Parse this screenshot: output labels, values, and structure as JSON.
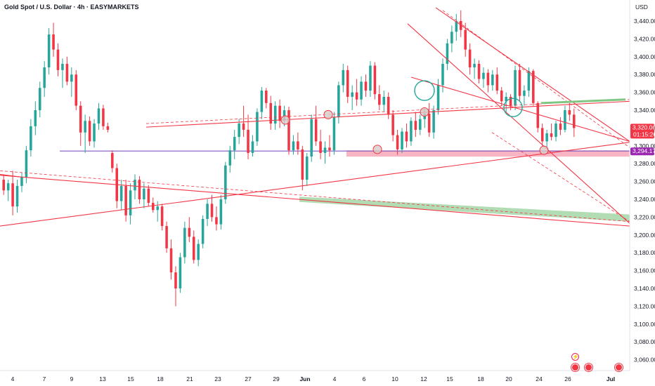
{
  "header": {
    "title": "Gold Spot / U.S. Dollar · 4h · EASYMARKETS"
  },
  "colors": {
    "up": "#26a69a",
    "down": "#f23645",
    "trendline": "#f23645",
    "support_line": "#7e57c2",
    "support_zone": "#f7a8b8",
    "green_zone": "#a5d6a7",
    "price_badge": "#f23645",
    "support_badge": "#9c27b0"
  },
  "icons": {
    "lightning": "lightning-icon",
    "earnings": [
      "flag-icon",
      "flag-icon",
      "flag-icon"
    ]
  },
  "chart_data": {
    "type": "candlestick",
    "title": "Gold Spot / U.S. Dollar · 4h · EASYMARKETS",
    "price_axis": {
      "unit": "USD",
      "ticks": [
        "3,440.00",
        "3,420.00",
        "3,400.00",
        "3,380.00",
        "3,360.00",
        "3,340.00",
        "3,320.00",
        "3,300.00",
        "3,280.00",
        "3,260.00",
        "3,240.00",
        "3,220.00",
        "3,200.00",
        "3,180.00",
        "3,160.00",
        "3,140.00",
        "3,120.00",
        "3,100.00",
        "3,080.00",
        "3,060.00"
      ],
      "ylim": [
        3050,
        3455
      ]
    },
    "time_axis": [
      "4",
      "7",
      "9",
      "13",
      "15",
      "18",
      "21",
      "23",
      "27",
      "29",
      "Jun",
      "4",
      "6",
      "10",
      "12",
      "15",
      "18",
      "20",
      "24",
      "26",
      "Jul"
    ],
    "current_price": {
      "value": 3320.06,
      "label": "3,320.06",
      "countdown": "01:15:26"
    },
    "support_level": {
      "value": 3294.17,
      "label": "3,294.17"
    },
    "candles": [
      {
        "o": 3262,
        "h": 3268,
        "l": 3245,
        "c": 3250
      },
      {
        "o": 3250,
        "h": 3262,
        "l": 3238,
        "c": 3258
      },
      {
        "o": 3258,
        "h": 3272,
        "l": 3222,
        "c": 3232
      },
      {
        "o": 3232,
        "h": 3262,
        "l": 3225,
        "c": 3255
      },
      {
        "o": 3255,
        "h": 3270,
        "l": 3248,
        "c": 3265
      },
      {
        "o": 3265,
        "h": 3300,
        "l": 3258,
        "c": 3295
      },
      {
        "o": 3295,
        "h": 3330,
        "l": 3288,
        "c": 3322
      },
      {
        "o": 3322,
        "h": 3350,
        "l": 3312,
        "c": 3340
      },
      {
        "o": 3340,
        "h": 3372,
        "l": 3332,
        "c": 3365
      },
      {
        "o": 3365,
        "h": 3395,
        "l": 3355,
        "c": 3388
      },
      {
        "o": 3388,
        "h": 3432,
        "l": 3380,
        "c": 3425
      },
      {
        "o": 3425,
        "h": 3438,
        "l": 3400,
        "c": 3408
      },
      {
        "o": 3408,
        "h": 3415,
        "l": 3378,
        "c": 3385
      },
      {
        "o": 3385,
        "h": 3398,
        "l": 3365,
        "c": 3392
      },
      {
        "o": 3392,
        "h": 3400,
        "l": 3368,
        "c": 3372
      },
      {
        "o": 3372,
        "h": 3388,
        "l": 3355,
        "c": 3380
      },
      {
        "o": 3380,
        "h": 3385,
        "l": 3340,
        "c": 3345
      },
      {
        "o": 3345,
        "h": 3350,
        "l": 3300,
        "c": 3315
      },
      {
        "o": 3315,
        "h": 3335,
        "l": 3292,
        "c": 3328
      },
      {
        "o": 3328,
        "h": 3333,
        "l": 3300,
        "c": 3305
      },
      {
        "o": 3305,
        "h": 3330,
        "l": 3298,
        "c": 3325
      },
      {
        "o": 3325,
        "h": 3348,
        "l": 3318,
        "c": 3342
      },
      {
        "o": 3342,
        "h": 3346,
        "l": 3318,
        "c": 3322
      },
      {
        "o": 3322,
        "h": 3326,
        "l": 3315,
        "c": 3318
      },
      {
        "o": 3292,
        "h": 3295,
        "l": 3270,
        "c": 3275
      },
      {
        "o": 3275,
        "h": 3280,
        "l": 3230,
        "c": 3238
      },
      {
        "o": 3238,
        "h": 3262,
        "l": 3228,
        "c": 3255
      },
      {
        "o": 3255,
        "h": 3262,
        "l": 3215,
        "c": 3222
      },
      {
        "o": 3222,
        "h": 3258,
        "l": 3212,
        "c": 3250
      },
      {
        "o": 3250,
        "h": 3268,
        "l": 3240,
        "c": 3262
      },
      {
        "o": 3262,
        "h": 3266,
        "l": 3235,
        "c": 3240
      },
      {
        "o": 3240,
        "h": 3258,
        "l": 3230,
        "c": 3252
      },
      {
        "o": 3252,
        "h": 3256,
        "l": 3232,
        "c": 3236
      },
      {
        "o": 3236,
        "h": 3242,
        "l": 3225,
        "c": 3228
      },
      {
        "o": 3228,
        "h": 3238,
        "l": 3215,
        "c": 3232
      },
      {
        "o": 3232,
        "h": 3235,
        "l": 3205,
        "c": 3210
      },
      {
        "o": 3210,
        "h": 3215,
        "l": 3180,
        "c": 3185
      },
      {
        "o": 3185,
        "h": 3195,
        "l": 3150,
        "c": 3158
      },
      {
        "o": 3158,
        "h": 3165,
        "l": 3120,
        "c": 3140
      },
      {
        "o": 3140,
        "h": 3180,
        "l": 3135,
        "c": 3175
      },
      {
        "o": 3175,
        "h": 3215,
        "l": 3168,
        "c": 3208
      },
      {
        "o": 3208,
        "h": 3220,
        "l": 3192,
        "c": 3198
      },
      {
        "o": 3198,
        "h": 3205,
        "l": 3168,
        "c": 3172
      },
      {
        "o": 3172,
        "h": 3195,
        "l": 3165,
        "c": 3190
      },
      {
        "o": 3190,
        "h": 3222,
        "l": 3185,
        "c": 3218
      },
      {
        "o": 3218,
        "h": 3240,
        "l": 3210,
        "c": 3235
      },
      {
        "o": 3235,
        "h": 3245,
        "l": 3215,
        "c": 3220
      },
      {
        "o": 3220,
        "h": 3232,
        "l": 3205,
        "c": 3212
      },
      {
        "o": 3212,
        "h": 3245,
        "l": 3206,
        "c": 3240
      },
      {
        "o": 3240,
        "h": 3282,
        "l": 3235,
        "c": 3278
      },
      {
        "o": 3278,
        "h": 3300,
        "l": 3270,
        "c": 3295
      },
      {
        "o": 3295,
        "h": 3318,
        "l": 3285,
        "c": 3310
      },
      {
        "o": 3310,
        "h": 3330,
        "l": 3302,
        "c": 3325
      },
      {
        "o": 3325,
        "h": 3345,
        "l": 3310,
        "c": 3318
      },
      {
        "o": 3318,
        "h": 3335,
        "l": 3285,
        "c": 3292
      },
      {
        "o": 3292,
        "h": 3312,
        "l": 3288,
        "c": 3305
      },
      {
        "o": 3305,
        "h": 3342,
        "l": 3300,
        "c": 3338
      },
      {
        "o": 3338,
        "h": 3366,
        "l": 3330,
        "c": 3362
      },
      {
        "o": 3362,
        "h": 3365,
        "l": 3342,
        "c": 3348
      },
      {
        "o": 3348,
        "h": 3356,
        "l": 3318,
        "c": 3325
      },
      {
        "o": 3325,
        "h": 3350,
        "l": 3318,
        "c": 3345
      },
      {
        "o": 3345,
        "h": 3352,
        "l": 3320,
        "c": 3328
      },
      {
        "o": 3328,
        "h": 3345,
        "l": 3322,
        "c": 3340
      },
      {
        "o": 3340,
        "h": 3344,
        "l": 3290,
        "c": 3295
      },
      {
        "o": 3295,
        "h": 3312,
        "l": 3290,
        "c": 3305
      },
      {
        "o": 3305,
        "h": 3315,
        "l": 3290,
        "c": 3296
      },
      {
        "o": 3296,
        "h": 3300,
        "l": 3250,
        "c": 3262
      },
      {
        "o": 3262,
        "h": 3292,
        "l": 3255,
        "c": 3288
      },
      {
        "o": 3288,
        "h": 3335,
        "l": 3282,
        "c": 3330
      },
      {
        "o": 3330,
        "h": 3345,
        "l": 3300,
        "c": 3305
      },
      {
        "o": 3305,
        "h": 3318,
        "l": 3285,
        "c": 3292
      },
      {
        "o": 3292,
        "h": 3305,
        "l": 3280,
        "c": 3298
      },
      {
        "o": 3298,
        "h": 3312,
        "l": 3288,
        "c": 3295
      },
      {
        "o": 3295,
        "h": 3338,
        "l": 3290,
        "c": 3332
      },
      {
        "o": 3332,
        "h": 3372,
        "l": 3325,
        "c": 3368
      },
      {
        "o": 3368,
        "h": 3392,
        "l": 3360,
        "c": 3385
      },
      {
        "o": 3385,
        "h": 3390,
        "l": 3348,
        "c": 3355
      },
      {
        "o": 3355,
        "h": 3368,
        "l": 3340,
        "c": 3360
      },
      {
        "o": 3360,
        "h": 3375,
        "l": 3345,
        "c": 3352
      },
      {
        "o": 3352,
        "h": 3378,
        "l": 3345,
        "c": 3372
      },
      {
        "o": 3372,
        "h": 3380,
        "l": 3355,
        "c": 3362
      },
      {
        "o": 3362,
        "h": 3395,
        "l": 3355,
        "c": 3390
      },
      {
        "o": 3390,
        "h": 3394,
        "l": 3352,
        "c": 3358
      },
      {
        "o": 3358,
        "h": 3368,
        "l": 3340,
        "c": 3346
      },
      {
        "o": 3346,
        "h": 3362,
        "l": 3338,
        "c": 3355
      },
      {
        "o": 3355,
        "h": 3360,
        "l": 3330,
        "c": 3335
      },
      {
        "o": 3335,
        "h": 3340,
        "l": 3305,
        "c": 3312
      },
      {
        "o": 3312,
        "h": 3318,
        "l": 3290,
        "c": 3296
      },
      {
        "o": 3296,
        "h": 3320,
        "l": 3292,
        "c": 3316
      },
      {
        "o": 3316,
        "h": 3325,
        "l": 3298,
        "c": 3305
      },
      {
        "o": 3305,
        "h": 3332,
        "l": 3300,
        "c": 3328
      },
      {
        "o": 3328,
        "h": 3338,
        "l": 3310,
        "c": 3318
      },
      {
        "o": 3318,
        "h": 3335,
        "l": 3312,
        "c": 3330
      },
      {
        "o": 3330,
        "h": 3342,
        "l": 3320,
        "c": 3336
      },
      {
        "o": 3336,
        "h": 3348,
        "l": 3310,
        "c": 3315
      },
      {
        "o": 3315,
        "h": 3345,
        "l": 3308,
        "c": 3340
      },
      {
        "o": 3340,
        "h": 3375,
        "l": 3335,
        "c": 3368
      },
      {
        "o": 3368,
        "h": 3398,
        "l": 3360,
        "c": 3392
      },
      {
        "o": 3392,
        "h": 3420,
        "l": 3385,
        "c": 3415
      },
      {
        "o": 3415,
        "h": 3435,
        "l": 3405,
        "c": 3428
      },
      {
        "o": 3428,
        "h": 3448,
        "l": 3418,
        "c": 3440
      },
      {
        "o": 3440,
        "h": 3452,
        "l": 3422,
        "c": 3430
      },
      {
        "o": 3430,
        "h": 3438,
        "l": 3400,
        "c": 3408
      },
      {
        "o": 3408,
        "h": 3415,
        "l": 3380,
        "c": 3388
      },
      {
        "o": 3388,
        "h": 3398,
        "l": 3375,
        "c": 3392
      },
      {
        "o": 3392,
        "h": 3396,
        "l": 3370,
        "c": 3375
      },
      {
        "o": 3375,
        "h": 3388,
        "l": 3365,
        "c": 3382
      },
      {
        "o": 3382,
        "h": 3386,
        "l": 3360,
        "c": 3368
      },
      {
        "o": 3368,
        "h": 3385,
        "l": 3362,
        "c": 3380
      },
      {
        "o": 3380,
        "h": 3388,
        "l": 3358,
        "c": 3362
      },
      {
        "o": 3362,
        "h": 3366,
        "l": 3345,
        "c": 3350
      },
      {
        "o": 3350,
        "h": 3360,
        "l": 3338,
        "c": 3355
      },
      {
        "o": 3355,
        "h": 3358,
        "l": 3340,
        "c": 3345
      },
      {
        "o": 3345,
        "h": 3390,
        "l": 3340,
        "c": 3385
      },
      {
        "o": 3385,
        "h": 3392,
        "l": 3350,
        "c": 3356
      },
      {
        "o": 3356,
        "h": 3368,
        "l": 3345,
        "c": 3362
      },
      {
        "o": 3362,
        "h": 3388,
        "l": 3355,
        "c": 3384
      },
      {
        "o": 3384,
        "h": 3386,
        "l": 3345,
        "c": 3348
      },
      {
        "o": 3348,
        "h": 3350,
        "l": 3315,
        "c": 3320
      },
      {
        "o": 3320,
        "h": 3325,
        "l": 3300,
        "c": 3305
      },
      {
        "o": 3305,
        "h": 3318,
        "l": 3298,
        "c": 3314
      },
      {
        "o": 3314,
        "h": 3325,
        "l": 3306,
        "c": 3310
      },
      {
        "o": 3310,
        "h": 3328,
        "l": 3305,
        "c": 3325
      },
      {
        "o": 3325,
        "h": 3332,
        "l": 3312,
        "c": 3318
      },
      {
        "o": 3318,
        "h": 3345,
        "l": 3315,
        "c": 3340
      },
      {
        "o": 3340,
        "h": 3348,
        "l": 3328,
        "c": 3335
      },
      {
        "o": 3335,
        "h": 3342,
        "l": 3310,
        "c": 3320
      }
    ],
    "trendlines": [
      {
        "name": "rising-support-line",
        "points": [
          [
            "day0",
            3210
          ],
          [
            "day34",
            3304
          ]
        ]
      },
      {
        "name": "descending-long-support",
        "points": [
          [
            "day0",
            3267
          ],
          [
            "day34",
            3210
          ]
        ]
      },
      {
        "name": "descending-channel-upper",
        "points": [
          [
            "day24",
            3455
          ],
          [
            "day34",
            3342
          ]
        ]
      },
      {
        "name": "descending-channel-lower",
        "points": [
          [
            "day22",
            3437
          ],
          [
            "day34",
            3213
          ]
        ]
      },
      {
        "name": "inner-descending-line",
        "points": [
          [
            "day20",
            3377
          ],
          [
            "day34",
            3305
          ]
        ]
      },
      {
        "name": "mid-rising-line",
        "points": [
          [
            "day8",
            3317
          ],
          [
            "day34",
            3348
          ]
        ]
      }
    ]
  }
}
